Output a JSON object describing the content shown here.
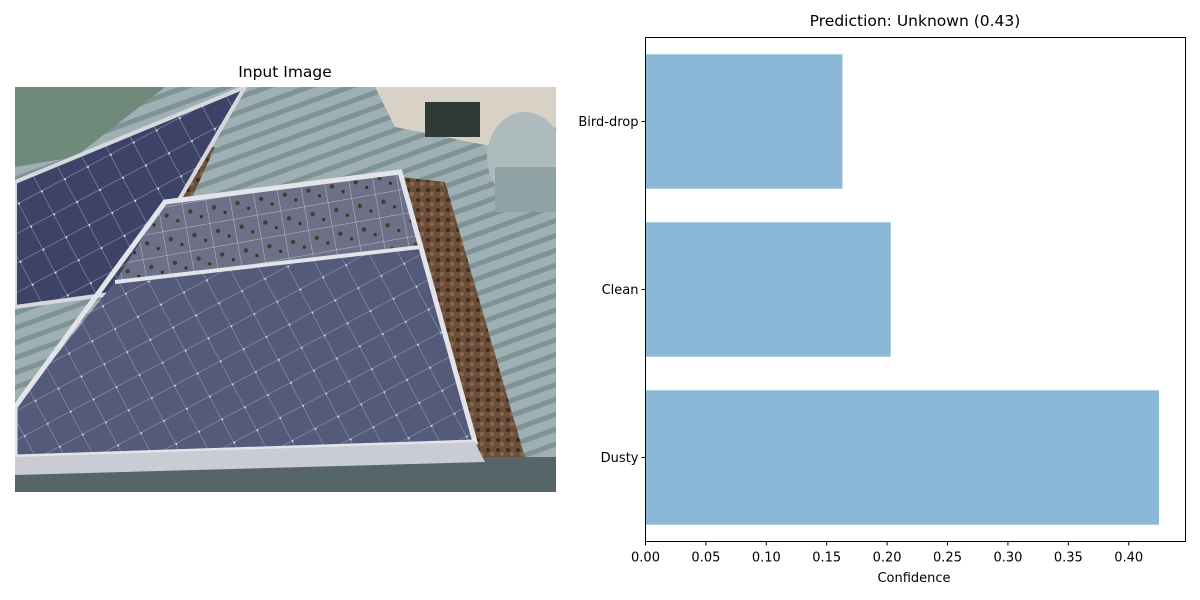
{
  "left_panel": {
    "title": "Input Image",
    "image_description_icon": "solar-panel-photo"
  },
  "chart_data": {
    "type": "bar",
    "orientation": "horizontal",
    "title": "Prediction: Unknown (0.43)",
    "xlabel": "Confidence",
    "ylabel": "",
    "categories": [
      "Dusty",
      "Clean",
      "Bird-drop"
    ],
    "values": [
      0.425,
      0.203,
      0.163
    ],
    "xlim": [
      0,
      0.447
    ],
    "xticks": [
      "0.00",
      "0.05",
      "0.10",
      "0.15",
      "0.20",
      "0.25",
      "0.30",
      "0.35",
      "0.40"
    ],
    "bar_color": "#8cb8d8",
    "grid": false,
    "legend": "none"
  }
}
